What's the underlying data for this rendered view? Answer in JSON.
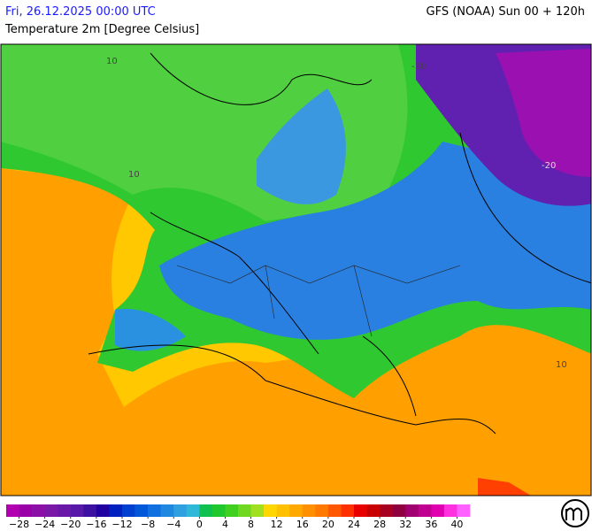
{
  "header": {
    "valid_time": "Fri, 26.12.2025 00:00 UTC",
    "model_run": "GFS (NOAA) Sun 00 + 120h",
    "parameter": "Temperature 2m [Degree Celsius]"
  },
  "map": {
    "contour_labels": [
      "10",
      "10",
      "-10",
      "-20",
      "10"
    ]
  },
  "colorbar": {
    "range": [
      -30,
      42
    ],
    "colors": [
      "#b000b0",
      "#9a00a8",
      "#8a10a8",
      "#7a18a8",
      "#6a18a8",
      "#5818a8",
      "#3c10a0",
      "#2000a0",
      "#0020c0",
      "#0040d0",
      "#0058d8",
      "#1070e0",
      "#2088e0",
      "#30a0e0",
      "#30b8d8",
      "#10c050",
      "#20c830",
      "#40d020",
      "#70d820",
      "#a0e020",
      "#ffd700",
      "#ffc000",
      "#ffa800",
      "#ff9000",
      "#ff7800",
      "#ff5800",
      "#ff3000",
      "#e80000",
      "#c80000",
      "#a80020",
      "#900040",
      "#a00070",
      "#c00090",
      "#e000b0",
      "#ff30e0",
      "#ff60ff"
    ],
    "ticks": [
      {
        "value": -28,
        "label": "−28"
      },
      {
        "value": -24,
        "label": "−24"
      },
      {
        "value": -20,
        "label": "−20"
      },
      {
        "value": -16,
        "label": "−16"
      },
      {
        "value": -12,
        "label": "−12"
      },
      {
        "value": -8,
        "label": "−8"
      },
      {
        "value": -4,
        "label": "−4"
      },
      0,
      4,
      8,
      12,
      16,
      20,
      24,
      28,
      32,
      36,
      40
    ]
  }
}
